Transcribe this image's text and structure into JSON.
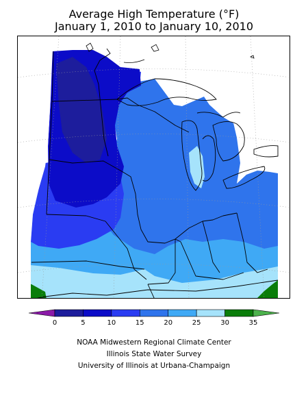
{
  "title": {
    "line1": "Average High Temperature (°F)",
    "line2": "January 1, 2010 to January 10, 2010"
  },
  "legend": {
    "ticks": [
      "0",
      "5",
      "10",
      "15",
      "20",
      "25",
      "30",
      "35"
    ],
    "colors": [
      "#8b1aa8",
      "#1d1d9c",
      "#0c0cc8",
      "#2a3cf2",
      "#2f74ec",
      "#3fa9f5",
      "#a6e3fb",
      "#0a7d0a",
      "#4cb24c"
    ]
  },
  "map": {
    "background_color": "#ffffff",
    "border_line_color": "#000000",
    "grid_color": "#9a9a9a"
  },
  "credits": {
    "line1": "NOAA Midwestern Regional Climate Center",
    "line2": "Illinois State Water Survey",
    "line3": "University of Illinois at Urbana-Champaign"
  }
}
